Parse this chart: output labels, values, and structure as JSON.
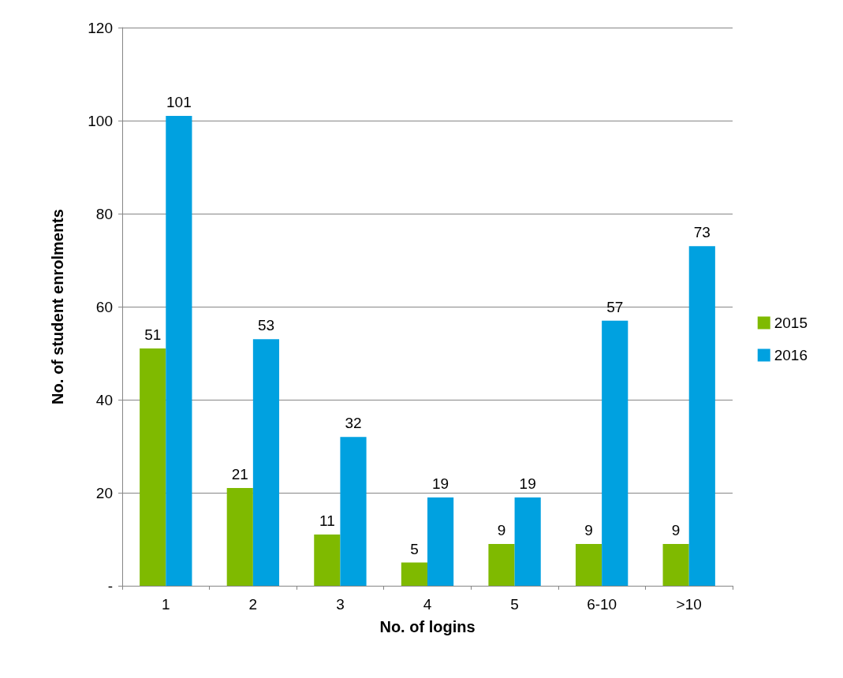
{
  "chart_data": {
    "type": "bar",
    "xlabel": "No. of logins",
    "ylabel": "No. of student enrolments",
    "categories": [
      "1",
      "2",
      "3",
      "4",
      "5",
      "6-10",
      ">10"
    ],
    "series": [
      {
        "name": "2015",
        "color": "#7fba00",
        "values": [
          51,
          21,
          11,
          5,
          9,
          9,
          9
        ]
      },
      {
        "name": "2016",
        "color": "#00a1e0",
        "values": [
          101,
          53,
          32,
          19,
          19,
          57,
          73
        ]
      }
    ],
    "ylim": [
      0,
      120
    ],
    "yticks": [
      {
        "value": 0,
        "label": "-"
      },
      20,
      40,
      60,
      80,
      100,
      120
    ],
    "grid": "y",
    "legend": "right",
    "data_labels": true
  }
}
